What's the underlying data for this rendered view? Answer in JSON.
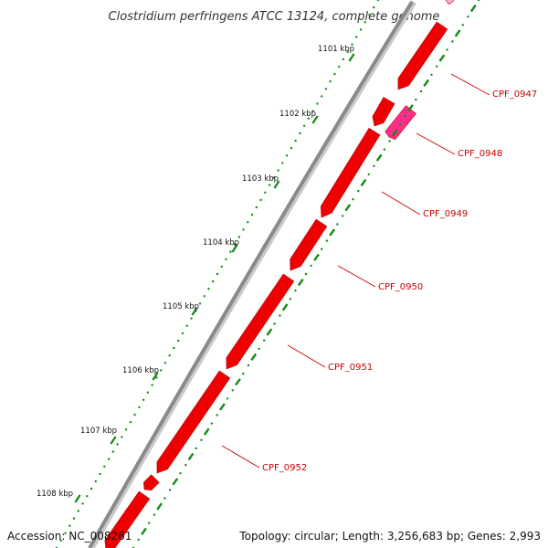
{
  "title": "Clostridium perfringens ATCC 13124, complete genome",
  "footer": {
    "accession": "Accession: NC_008261",
    "summary": "Topology: circular; Length: 3,256,683 bp; Genes: 2,993"
  },
  "colors": {
    "backbone": "#8a8a8a",
    "gene_forward": "#ee0000",
    "gene_highlight": "#ff2d8a",
    "gene_faint": "#ffb3cf",
    "gene_label": "#cc0000",
    "gc_skew": "#138a13"
  },
  "chart_data": {
    "type": "circular-genome-map",
    "tick_labels": [
      "1101 kbp",
      "1102 kbp",
      "1103 kbp",
      "1104 kbp",
      "1105 kbp",
      "1106 kbp",
      "1107 kbp",
      "1108 kbp"
    ],
    "genes": [
      {
        "label": "CPF_0947",
        "strand": "+",
        "highlight": false
      },
      {
        "label": "CPF_0948",
        "strand": "-",
        "highlight": true
      },
      {
        "label": "CPF_0949",
        "strand": "+",
        "highlight": false
      },
      {
        "label": "CPF_0950",
        "strand": "+",
        "highlight": false
      },
      {
        "label": "CPF_0951",
        "strand": "+",
        "highlight": false
      },
      {
        "label": "CPF_0952",
        "strand": "+",
        "highlight": false
      }
    ]
  }
}
